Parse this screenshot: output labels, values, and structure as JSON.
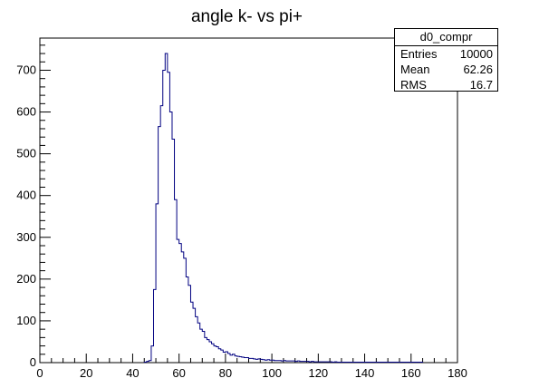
{
  "chart_data": {
    "type": "histogram",
    "title": "angle k- vs pi+",
    "xlabel": "",
    "ylabel": "",
    "xlim": [
      0,
      180
    ],
    "ylim": [
      0,
      777
    ],
    "xticks": [
      0,
      20,
      40,
      60,
      80,
      100,
      120,
      140,
      160,
      180
    ],
    "yticks": [
      0,
      100,
      200,
      300,
      400,
      500,
      600,
      700
    ],
    "bin_width": 1,
    "bins_x_start": 45,
    "line_color": "#000080",
    "counts": [
      1,
      3,
      5,
      40,
      175,
      380,
      565,
      615,
      700,
      740,
      695,
      600,
      535,
      390,
      295,
      285,
      265,
      250,
      205,
      185,
      145,
      130,
      110,
      95,
      80,
      75,
      60,
      55,
      50,
      45,
      40,
      38,
      33,
      30,
      25,
      26,
      22,
      18,
      20,
      16,
      15,
      14,
      13,
      12,
      12,
      10,
      10,
      9,
      8,
      9,
      8,
      7,
      6,
      7,
      6,
      6,
      5,
      5,
      5,
      4,
      5,
      4,
      4,
      4,
      4,
      3,
      4,
      3,
      3,
      3,
      3,
      2,
      3,
      2,
      2,
      2,
      2,
      2,
      2,
      2,
      2,
      1,
      2,
      1,
      1,
      1,
      1,
      1,
      1,
      1,
      1,
      1,
      1,
      1,
      1,
      1,
      1,
      1,
      1,
      1,
      1,
      1,
      1,
      1,
      1,
      1,
      1,
      1,
      1,
      1,
      1,
      1,
      1,
      1,
      1,
      1,
      1,
      1,
      1,
      1
    ]
  },
  "stats": {
    "name": "d0_compr",
    "rows": [
      {
        "label": "Entries",
        "value": "10000"
      },
      {
        "label": "Mean",
        "value": "62.26"
      },
      {
        "label": "RMS",
        "value": "16.7"
      }
    ]
  }
}
